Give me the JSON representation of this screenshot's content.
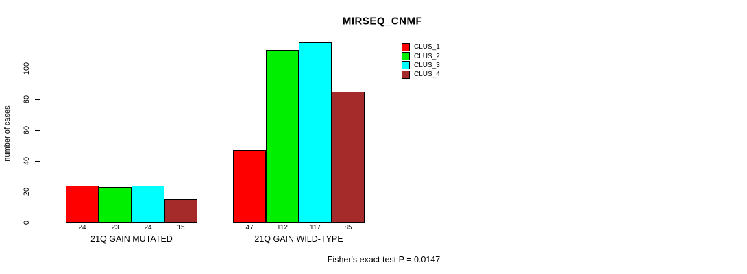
{
  "chart_data": {
    "type": "bar",
    "title": "MIRSEQ_CNMF",
    "ylabel": "number of cases",
    "xlabel": "",
    "categories": [
      "21Q GAIN MUTATED",
      "21Q GAIN WILD-TYPE"
    ],
    "series": [
      {
        "name": "CLUS_1",
        "color": "#ff0000",
        "values": [
          24,
          47
        ]
      },
      {
        "name": "CLUS_2",
        "color": "#00ee00",
        "values": [
          23,
          112
        ]
      },
      {
        "name": "CLUS_3",
        "color": "#00ffff",
        "values": [
          24,
          117
        ]
      },
      {
        "name": "CLUS_4",
        "color": "#a52a2a",
        "values": [
          15,
          85
        ]
      }
    ],
    "yticks": [
      "0",
      "20",
      "40",
      "60",
      "80",
      "100"
    ],
    "ylim": [
      0,
      100
    ],
    "bar_value_labels_shown": true,
    "grid": false,
    "legend_position": "top-right",
    "annotation": "Fisher's exact test P = 0.0147",
    "colors": {
      "axis": "#000000",
      "text": "#000000",
      "background": "#ffffff"
    }
  }
}
